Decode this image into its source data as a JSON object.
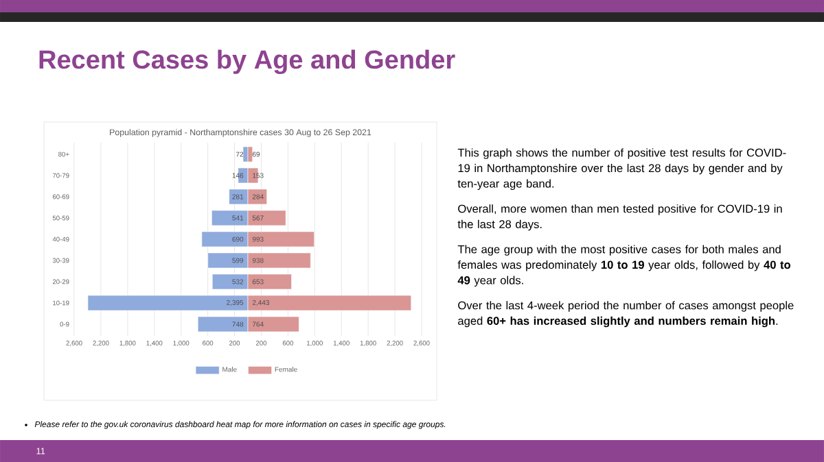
{
  "chart_data": {
    "type": "bar",
    "orientation": "horizontal",
    "title": "Recent Cases by Age and Gender",
    "subtitle": "Population pyramid - Northamptonshire cases 30 Aug to 26 Sep 2021",
    "categories": [
      "80+",
      "70-79",
      "60-69",
      "50-59",
      "40-49",
      "30-39",
      "20-29",
      "10-19",
      "0-9"
    ],
    "series": [
      {
        "name": "Male",
        "color": "#8faadc",
        "values": [
          72,
          146,
          281,
          541,
          690,
          599,
          532,
          2395,
          748
        ],
        "base": [
          -72,
          -146,
          -281,
          -541,
          -690,
          -599,
          -532,
          -2395,
          -748
        ],
        "value_labels": [
          "72",
          "146",
          "281",
          "541",
          "690",
          "599",
          "532",
          "2,395",
          "748"
        ]
      },
      {
        "name": "Female",
        "color": "#d99694",
        "values": [
          69,
          153,
          284,
          567,
          993,
          938,
          653,
          2443,
          764
        ],
        "value_labels": [
          "69",
          "153",
          "284",
          "567",
          "993",
          "938",
          "653",
          "2,443",
          "764"
        ]
      }
    ],
    "xlim": [
      -2600,
      2600
    ],
    "xticks": [
      {
        "value": -2600,
        "label": "2,600"
      },
      {
        "value": -2200,
        "label": "2,200"
      },
      {
        "value": -1800,
        "label": "1,800"
      },
      {
        "value": -1400,
        "label": "1,400"
      },
      {
        "value": -1000,
        "label": "1,000"
      },
      {
        "value": -600,
        "label": "600"
      },
      {
        "value": -200,
        "label": "200"
      },
      200,
      600,
      {
        "value": 1000,
        "label": "1,000"
      },
      {
        "value": 1400,
        "label": "1,400"
      },
      {
        "value": 1800,
        "label": "1,800"
      },
      {
        "value": 2200,
        "label": "2,200"
      },
      {
        "value": 2600,
        "label": "2,600"
      }
    ],
    "grid": "x",
    "legend": "bottom",
    "annotations": [
      "This graph shows the number of positive test results for COVID-19 in Northamptonshire over the last 28 days by gender and by ten-year age band.",
      "Overall, more women than men tested positive for COVID-19 in the last 28 days.",
      "The age group with the most positive cases for both males and females was predominately **10 to 19** year olds, followed by **40 to 49** year olds.",
      "Over the last 4-week period the number of cases amongst people aged **60+ has increased slightly and numbers remain high**.",
      "Please refer to the gov.uk coronavirus dashboard heat map for more information on cases in specific age groups.",
      "11"
    ]
  }
}
